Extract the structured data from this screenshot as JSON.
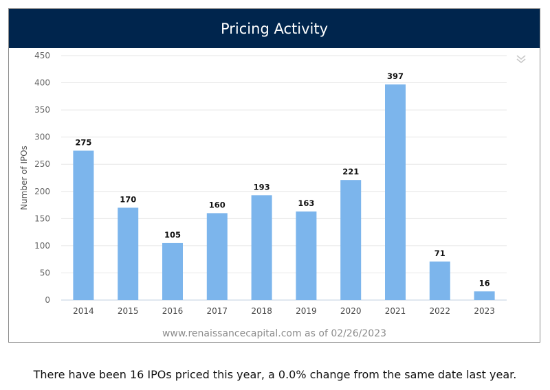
{
  "chart_data": {
    "type": "bar",
    "title": "Pricing Activity",
    "xlabel": "",
    "ylabel": "Number of IPOs",
    "categories": [
      "2014",
      "2015",
      "2016",
      "2017",
      "2018",
      "2019",
      "2020",
      "2021",
      "2022",
      "2023"
    ],
    "values": [
      275,
      170,
      105,
      160,
      193,
      163,
      221,
      397,
      71,
      16
    ],
    "ylim": [
      0,
      450
    ],
    "yticks": [
      0,
      50,
      100,
      150,
      200,
      250,
      300,
      350,
      400,
      450
    ],
    "grid": true,
    "legend": "none",
    "bar_color": "#7cb5ec",
    "header_color": "#00254d"
  },
  "menu_icon": "double-chevron-down-icon",
  "source_text": "www.renaissancecapital.com as of 02/26/2023",
  "summary_text": "There have been 16 IPOs priced this year, a 0.0% change from the same date last year."
}
